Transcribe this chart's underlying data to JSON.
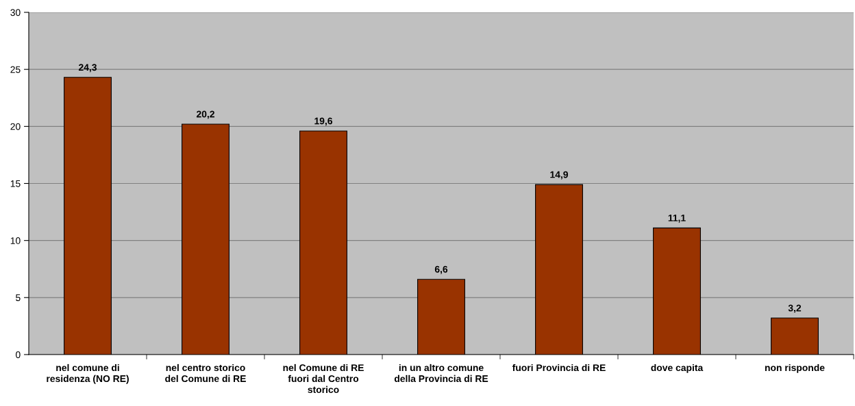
{
  "chart_data": {
    "type": "bar",
    "categories": [
      "nel comune di\nresidenza (NO RE)",
      "nel centro storico\ndel Comune di RE",
      "nel Comune di RE\nfuori dal Centro\nstorico",
      "in un altro comune\ndella Provincia di RE",
      "fuori Provincia di RE",
      "dove capita",
      "non risponde"
    ],
    "values": [
      24.3,
      20.2,
      19.6,
      6.6,
      14.9,
      11.1,
      3.2
    ],
    "value_labels": [
      "24,3",
      "20,2",
      "19,6",
      "6,6",
      "14,9",
      "11,1",
      "3,2"
    ],
    "color": "#993300",
    "ylim": [
      0,
      30
    ],
    "yticks": [
      0,
      5,
      10,
      15,
      20,
      25,
      30
    ],
    "grid": "y",
    "legend": false
  }
}
